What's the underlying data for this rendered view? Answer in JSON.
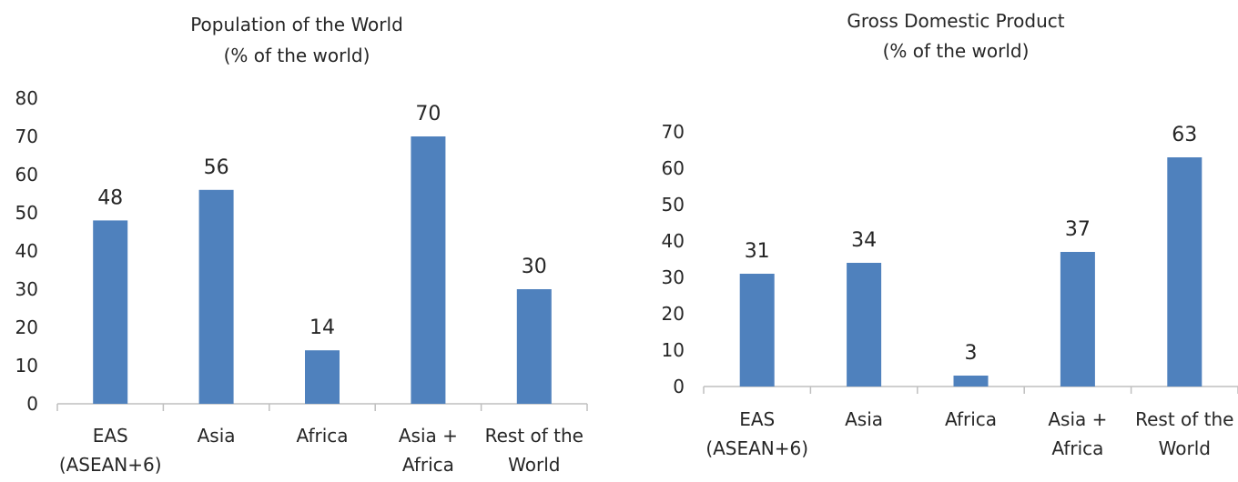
{
  "chart_data": [
    {
      "type": "bar",
      "title": "Population of the World",
      "subtitle": "(% of the world)",
      "categories": [
        [
          "EAS",
          "(ASEAN+6)"
        ],
        [
          "Asia"
        ],
        [
          "Africa"
        ],
        [
          "Asia +",
          "Africa"
        ],
        [
          "Rest of the",
          "World"
        ]
      ],
      "values": [
        48,
        56,
        14,
        70,
        30
      ],
      "ylim": [
        0,
        80
      ],
      "yticks": [
        0,
        10,
        20,
        30,
        40,
        50,
        60,
        70,
        80
      ],
      "bar_color": "#4f81bd",
      "grid": false,
      "legend": "none"
    },
    {
      "type": "bar",
      "title": "Gross Domestic Product",
      "subtitle": "(% of the world)",
      "categories": [
        [
          "EAS",
          "(ASEAN+6)"
        ],
        [
          "Asia"
        ],
        [
          "Africa"
        ],
        [
          "Asia +",
          "Africa"
        ],
        [
          "Rest of the",
          "World"
        ]
      ],
      "values": [
        31,
        34,
        3,
        37,
        63
      ],
      "ylim": [
        0,
        70
      ],
      "yticks": [
        0,
        10,
        20,
        30,
        40,
        50,
        60,
        70
      ],
      "bar_color": "#4f81bd",
      "grid": false,
      "legend": "none"
    }
  ]
}
